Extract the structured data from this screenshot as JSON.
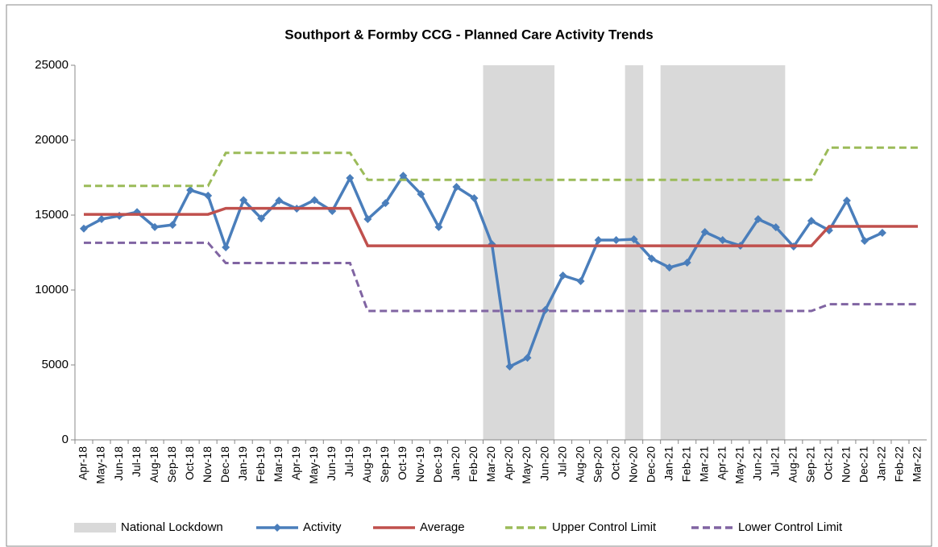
{
  "chart_data": {
    "type": "line",
    "title": "Southport & Formby CCG - Planned Care Activity Trends",
    "categories": [
      "Apr-18",
      "May-18",
      "Jun-18",
      "Jul-18",
      "Aug-18",
      "Sep-18",
      "Oct-18",
      "Nov-18",
      "Dec-18",
      "Jan-19",
      "Feb-19",
      "Mar-19",
      "Apr-19",
      "May-19",
      "Jun-19",
      "Jul-19",
      "Aug-19",
      "Sep-19",
      "Oct-19",
      "Nov-19",
      "Dec-19",
      "Jan-20",
      "Feb-20",
      "Mar-20",
      "Apr-20",
      "May-20",
      "Jun-20",
      "Jul-20",
      "Aug-20",
      "Sep-20",
      "Oct-20",
      "Nov-20",
      "Dec-20",
      "Jan-21",
      "Feb-21",
      "Mar-21",
      "Apr-21",
      "May-21",
      "Jun-21",
      "Jul-21",
      "Aug-21",
      "Sep-21",
      "Oct-21",
      "Nov-21",
      "Dec-21",
      "Jan-22",
      "Feb-22",
      "Mar-22"
    ],
    "ylim": [
      0,
      25000
    ],
    "yticks": [
      0,
      5000,
      10000,
      15000,
      20000,
      25000
    ],
    "legend": "bottom",
    "series": [
      {
        "name": "National Lockdown",
        "type": "bar",
        "color": "#d9d9d9",
        "values": [
          null,
          null,
          null,
          null,
          null,
          null,
          null,
          null,
          null,
          null,
          null,
          null,
          null,
          null,
          null,
          null,
          null,
          null,
          null,
          null,
          null,
          null,
          null,
          25000,
          25000,
          25000,
          25000,
          null,
          null,
          null,
          null,
          25000,
          null,
          25000,
          25000,
          25000,
          25000,
          25000,
          25000,
          25000,
          null,
          null,
          null,
          null,
          null,
          null,
          null,
          null
        ]
      },
      {
        "name": "Activity",
        "color": "#4a7ebb",
        "marker": "diamond",
        "values": [
          14100,
          14730,
          14950,
          15200,
          14200,
          14350,
          16670,
          16300,
          12850,
          16000,
          14780,
          15970,
          15430,
          16000,
          15270,
          17470,
          14730,
          15800,
          17630,
          16400,
          14200,
          16880,
          16130,
          13060,
          4890,
          5480,
          8660,
          10970,
          10590,
          13330,
          13330,
          13390,
          12100,
          11500,
          11830,
          13870,
          13330,
          12960,
          14730,
          14190,
          12900,
          14620,
          13980,
          15970,
          13280,
          13820,
          null,
          null
        ]
      },
      {
        "name": "Average",
        "color": "#c0504d",
        "values": [
          15050,
          15050,
          15050,
          15050,
          15050,
          15050,
          15050,
          15050,
          15450,
          15450,
          15450,
          15450,
          15450,
          15450,
          15450,
          15450,
          12950,
          12950,
          12950,
          12950,
          12950,
          12950,
          12950,
          12950,
          12950,
          12950,
          12950,
          12950,
          12950,
          12950,
          12950,
          12950,
          12950,
          12950,
          12950,
          12950,
          12950,
          12950,
          12950,
          12950,
          12950,
          12950,
          14250,
          14250,
          14250,
          14250,
          14250,
          14250
        ]
      },
      {
        "name": "Upper Control Limit",
        "color": "#9bbb59",
        "dashed": true,
        "values": [
          16950,
          16950,
          16950,
          16950,
          16950,
          16950,
          16950,
          16950,
          19150,
          19150,
          19150,
          19150,
          19150,
          19150,
          19150,
          19150,
          17350,
          17350,
          17350,
          17350,
          17350,
          17350,
          17350,
          17350,
          17350,
          17350,
          17350,
          17350,
          17350,
          17350,
          17350,
          17350,
          17350,
          17350,
          17350,
          17350,
          17350,
          17350,
          17350,
          17350,
          17350,
          17350,
          19500,
          19500,
          19500,
          19500,
          19500,
          19500
        ]
      },
      {
        "name": "Lower Control Limit",
        "color": "#8064a2",
        "dashed": true,
        "values": [
          13150,
          13150,
          13150,
          13150,
          13150,
          13150,
          13150,
          13150,
          11800,
          11800,
          11800,
          11800,
          11800,
          11800,
          11800,
          11800,
          8600,
          8600,
          8600,
          8600,
          8600,
          8600,
          8600,
          8600,
          8600,
          8600,
          8600,
          8600,
          8600,
          8600,
          8600,
          8600,
          8600,
          8600,
          8600,
          8600,
          8600,
          8600,
          8600,
          8600,
          8600,
          8600,
          9050,
          9050,
          9050,
          9050,
          9050,
          9050
        ]
      }
    ]
  }
}
